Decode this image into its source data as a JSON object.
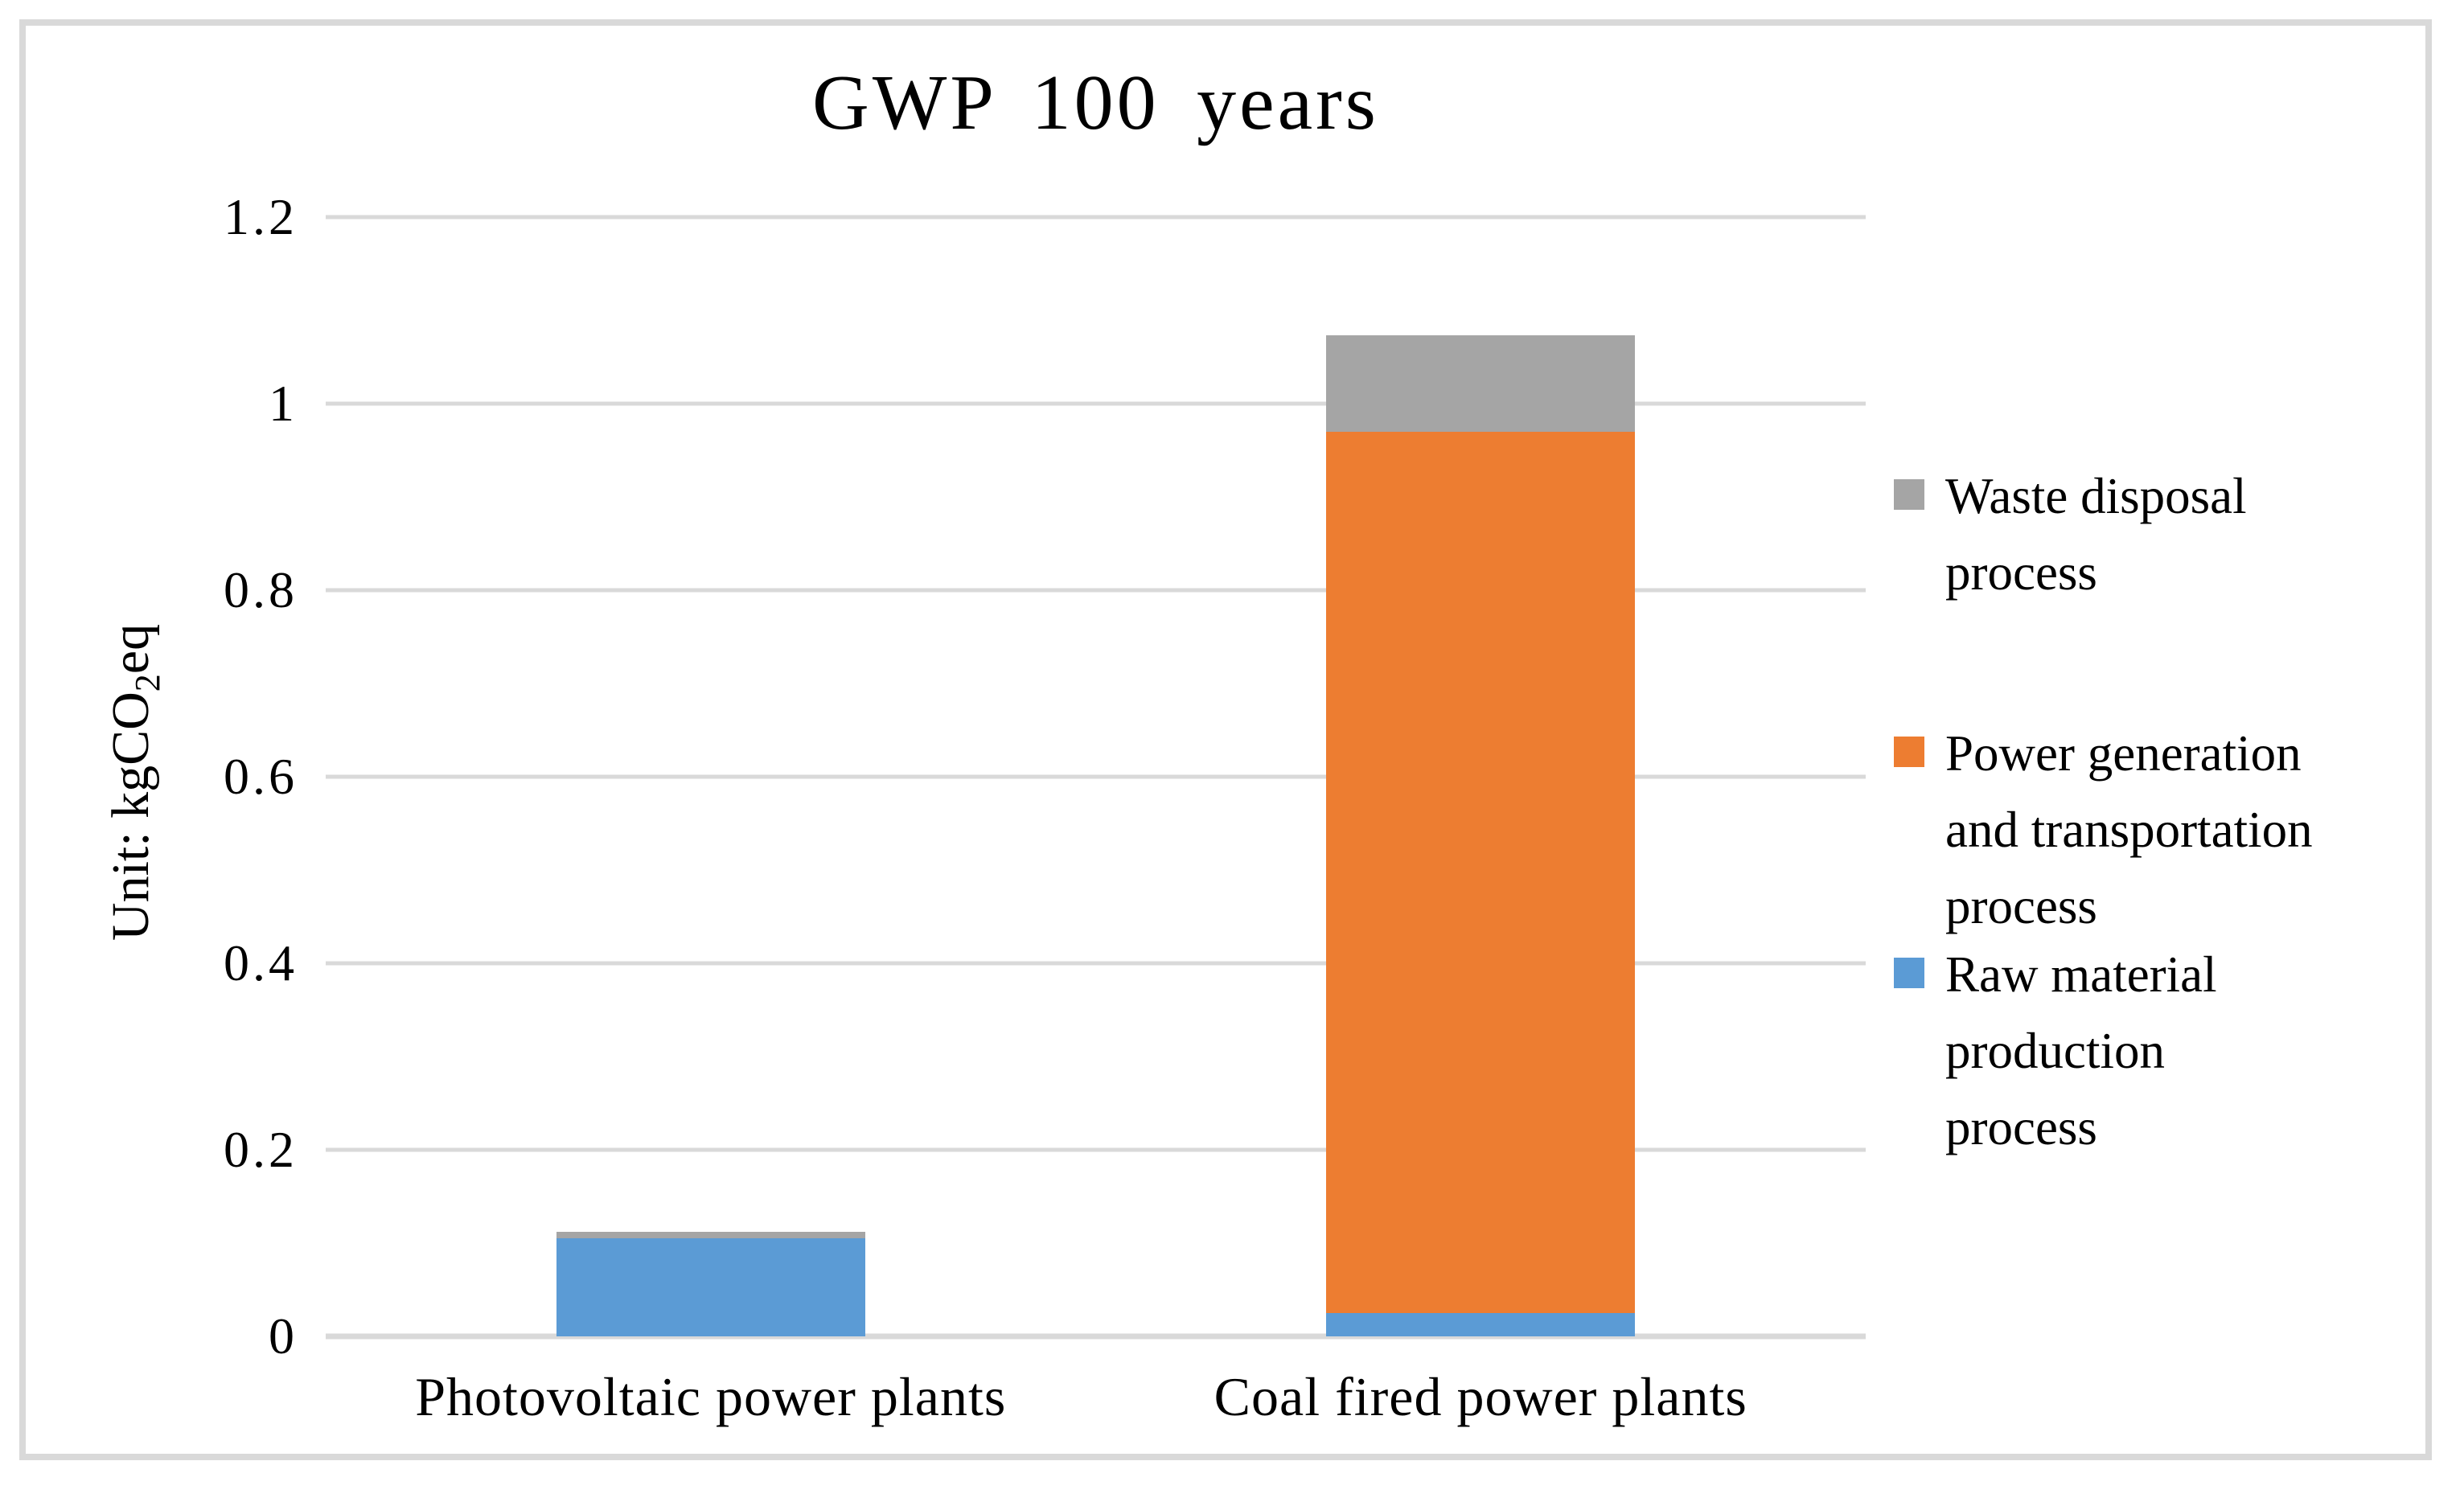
{
  "chart_data": {
    "type": "bar",
    "stacked": true,
    "title": "GWP 100 years",
    "ylabel": "Unit: kgCO2eq",
    "ylabel_parts": {
      "pre": "Unit: kgCO",
      "sub": "2",
      "post": "eq"
    },
    "categories": [
      "Photovoltaic power plants",
      "Coal fired power plants"
    ],
    "series": [
      {
        "name": "Raw material production process",
        "color": "#5b9bd5",
        "values": [
          0.105,
          0.025
        ]
      },
      {
        "name": "Power generation and transportation process",
        "color": "#ed7d31",
        "values": [
          0,
          0.945
        ]
      },
      {
        "name": "Waste disposal process",
        "color": "#a5a5a5",
        "values": [
          0.007,
          0.103
        ]
      }
    ],
    "ylim": [
      0,
      1.2
    ],
    "yticks": [
      {
        "label": "0",
        "value": 0
      },
      {
        "label": "0.2",
        "value": 0.2
      },
      {
        "label": "0.4",
        "value": 0.4
      },
      {
        "label": "0.6",
        "value": 0.6
      },
      {
        "label": "0.8",
        "value": 0.8
      },
      {
        "label": "1",
        "value": 1
      },
      {
        "label": "1.2",
        "value": 1.2
      }
    ],
    "grid": true,
    "legend_position": "right",
    "legend_entries": [
      {
        "label": "Waste disposal\nprocess",
        "color": "#a5a5a5"
      },
      {
        "label": "Power generation\nand transportation\nprocess",
        "color": "#ed7d31"
      },
      {
        "label": "Raw material\nproduction\nprocess",
        "color": "#5b9bd5"
      }
    ],
    "colors": {
      "gridline": "#d9d9d9",
      "frame_border": "#d9d9d9",
      "text": "#000000",
      "background": "#ffffff"
    }
  }
}
